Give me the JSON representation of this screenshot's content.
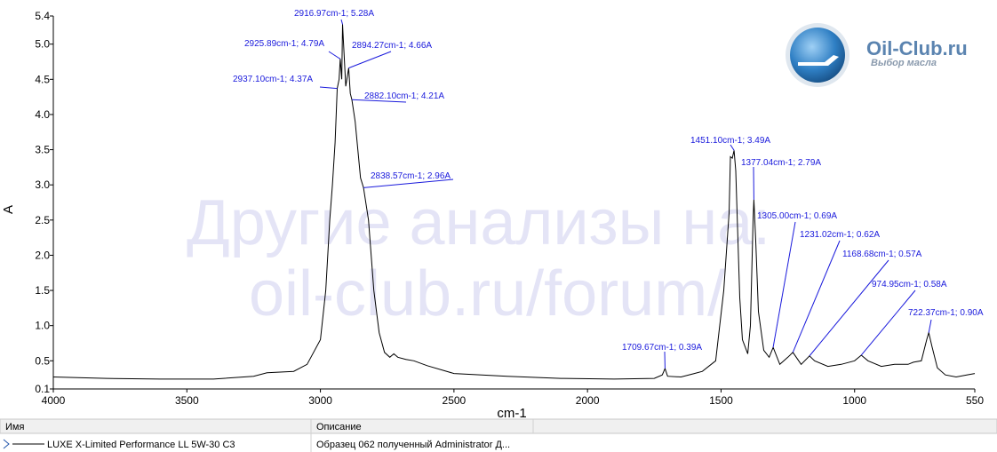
{
  "chart_data": {
    "type": "line",
    "xlabel": "cm-1",
    "ylabel": "A",
    "xlim": [
      4000,
      550
    ],
    "ylim": [
      0.1,
      5.4
    ],
    "xticks": [
      4000,
      3500,
      3000,
      2500,
      2000,
      1500,
      1000,
      550
    ],
    "yticks": [
      0.1,
      0.5,
      {
        "value": 1,
        "label": "1.0"
      },
      1.5,
      {
        "value": 2,
        "label": "2.0"
      },
      2.5,
      {
        "value": 3,
        "label": "3.0"
      },
      3.5,
      {
        "value": 4,
        "label": "4.0"
      },
      4.5,
      {
        "value": 5,
        "label": "5.0"
      },
      5.4
    ],
    "x": [
      4000,
      3800,
      3600,
      3400,
      3250,
      3200,
      3100,
      3050,
      3000,
      2980,
      2965,
      2955,
      2945,
      2937.1,
      2930,
      2925.89,
      2920,
      2916.97,
      2905,
      2894.27,
      2888,
      2882.1,
      2870,
      2860,
      2850,
      2838.57,
      2820,
      2800,
      2780,
      2760,
      2740,
      2725,
      2710,
      2680,
      2650,
      2600,
      2500,
      2300,
      2100,
      1900,
      1750,
      1720,
      1709.67,
      1700,
      1650,
      1600,
      1570,
      1520,
      1490,
      1470,
      1465,
      1458,
      1451.1,
      1445,
      1430,
      1420,
      1400,
      1390,
      1380,
      1377.04,
      1370,
      1360,
      1340,
      1320,
      1305,
      1280,
      1250,
      1231.02,
      1200,
      1168.68,
      1150,
      1100,
      1050,
      1000,
      974.95,
      950,
      900,
      850,
      800,
      780,
      750,
      730,
      722.37,
      710,
      690,
      660,
      620,
      580,
      550
    ],
    "series": [
      {
        "name": "LUXE X-Limited Performance LL 5W-30 C3",
        "color": "#000000",
        "values": [
          0.27,
          0.25,
          0.24,
          0.24,
          0.28,
          0.33,
          0.35,
          0.45,
          0.8,
          1.5,
          2.5,
          3.0,
          3.6,
          4.37,
          4.5,
          4.79,
          4.5,
          5.28,
          4.4,
          4.66,
          4.3,
          4.21,
          3.9,
          3.5,
          3.1,
          2.96,
          2.5,
          1.5,
          0.9,
          0.62,
          0.55,
          0.6,
          0.55,
          0.52,
          0.5,
          0.43,
          0.32,
          0.28,
          0.25,
          0.24,
          0.25,
          0.3,
          0.39,
          0.28,
          0.27,
          0.32,
          0.35,
          0.5,
          1.5,
          2.6,
          3.4,
          3.38,
          3.49,
          3.2,
          1.4,
          0.8,
          0.6,
          1.0,
          2.5,
          2.79,
          2.2,
          1.2,
          0.65,
          0.55,
          0.69,
          0.45,
          0.55,
          0.62,
          0.45,
          0.57,
          0.5,
          0.42,
          0.45,
          0.5,
          0.58,
          0.5,
          0.42,
          0.45,
          0.45,
          0.48,
          0.5,
          0.8,
          0.9,
          0.7,
          0.4,
          0.3,
          0.27,
          0.3,
          0.32
        ]
      }
    ],
    "annotations": [
      {
        "text": "2916.97cm-1; 5.28A",
        "x": 2916.97,
        "y": 5.28
      },
      {
        "text": "2925.89cm-1; 4.79A",
        "x": 2925.89,
        "y": 4.79
      },
      {
        "text": "2894.27cm-1; 4.66A",
        "x": 2894.27,
        "y": 4.66
      },
      {
        "text": "2937.10cm-1; 4.37A",
        "x": 2937.1,
        "y": 4.37
      },
      {
        "text": "2882.10cm-1; 4.21A",
        "x": 2882.1,
        "y": 4.21
      },
      {
        "text": "2838.57cm-1; 2.96A",
        "x": 2838.57,
        "y": 2.96
      },
      {
        "text": "1451.10cm-1; 3.49A",
        "x": 1451.1,
        "y": 3.49
      },
      {
        "text": "1377.04cm-1; 2.79A",
        "x": 1377.04,
        "y": 2.79
      },
      {
        "text": "1305.00cm-1; 0.69A",
        "x": 1305,
        "y": 0.69
      },
      {
        "text": "1231.02cm-1; 0.62A",
        "x": 1231.02,
        "y": 0.62
      },
      {
        "text": "1168.68cm-1; 0.57A",
        "x": 1168.68,
        "y": 0.57
      },
      {
        "text": "974.95cm-1; 0.58A",
        "x": 974.95,
        "y": 0.58
      },
      {
        "text": "722.37cm-1; 0.90A",
        "x": 722.37,
        "y": 0.9
      },
      {
        "text": "1709.67cm-1; 0.39A",
        "x": 1709.67,
        "y": 0.39
      }
    ]
  },
  "watermark": [
    "Другие анализы на:",
    "oil-club.ru/forum/"
  ],
  "logo": {
    "title": "Oil-Club.ru",
    "subtitle": "Выбор масла"
  },
  "table": {
    "header": [
      "Имя",
      "Описание"
    ],
    "rows": [
      [
        "LUXE X-Limited Performance LL 5W-30 C3",
        "Образец 062 полученный Administrator Д..."
      ]
    ]
  }
}
